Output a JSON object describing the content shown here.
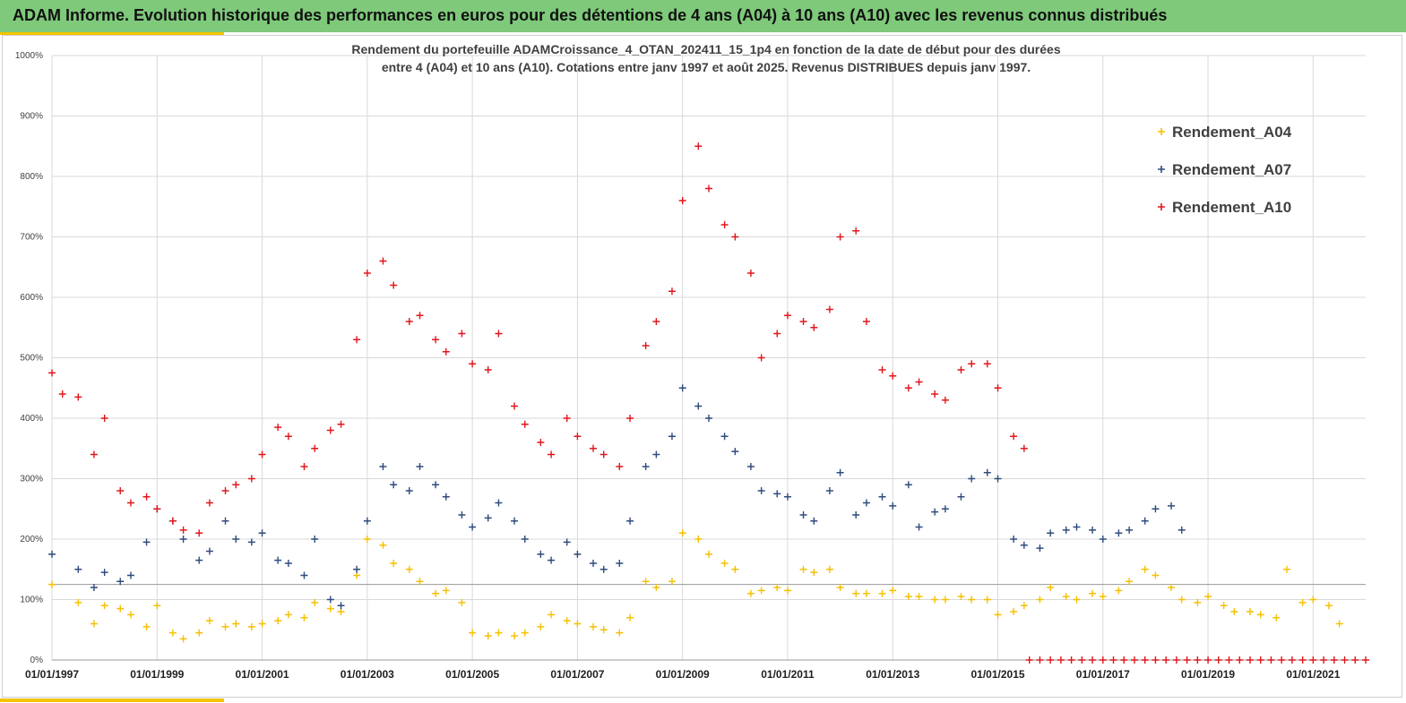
{
  "header": {
    "title": "ADAM Informe. Evolution historique des performances en euros pour des détentions de 4 ans (A04) à 10 ans (A10) avec les revenus connus distribués"
  },
  "colors": {
    "banner": "#7ec97a",
    "accent": "#f5c400",
    "a04": "#f5c000",
    "a07": "#2f4b7c",
    "a10": "#e0161c"
  },
  "chart_data": {
    "type": "scatter",
    "subtitle_line1": "Rendement du portefeuille ADAMCroissance_4_OTAN_202411_15_1p4  en fonction de la date de début pour des durées",
    "subtitle_line2": "entre 4 (A04) et 10 ans (A10). Cotations entre janv 1997 et août 2025. Revenus DISTRIBUES depuis janv 1997.",
    "xlim": [
      1997.0,
      2022.0
    ],
    "ylim": [
      0,
      1000
    ],
    "y_ticks": [
      "0%",
      "100%",
      "200%",
      "300%",
      "400%",
      "500%",
      "600%",
      "700%",
      "800%",
      "900%",
      "1000%"
    ],
    "x_ticks": [
      "01/01/1997",
      "01/01/1999",
      "01/01/2001",
      "01/01/2003",
      "01/01/2005",
      "01/01/2007",
      "01/01/2009",
      "01/01/2011",
      "01/01/2013",
      "01/01/2015",
      "01/01/2017",
      "01/01/2019",
      "01/01/2021"
    ],
    "reference_line_y": 125,
    "legend_position": "right",
    "marker": "+",
    "series": [
      {
        "name": "Rendement_A04",
        "color": "#f5c000",
        "x": [
          1997.0,
          1997.5,
          1997.8,
          1998.0,
          1998.3,
          1998.5,
          1998.8,
          1999.0,
          1999.3,
          1999.5,
          1999.8,
          2000.0,
          2000.3,
          2000.5,
          2000.8,
          2001.0,
          2001.3,
          2001.5,
          2001.8,
          2002.0,
          2002.3,
          2002.5,
          2002.8,
          2003.0,
          2003.3,
          2003.5,
          2003.8,
          2004.0,
          2004.3,
          2004.5,
          2004.8,
          2005.0,
          2005.3,
          2005.5,
          2005.8,
          2006.0,
          2006.3,
          2006.5,
          2006.8,
          2007.0,
          2007.3,
          2007.5,
          2007.8,
          2008.0,
          2008.3,
          2008.5,
          2008.8,
          2009.0,
          2009.3,
          2009.5,
          2009.8,
          2010.0,
          2010.3,
          2010.5,
          2010.8,
          2011.0,
          2011.3,
          2011.5,
          2011.8,
          2012.0,
          2012.3,
          2012.5,
          2012.8,
          2013.0,
          2013.3,
          2013.5,
          2013.8,
          2014.0,
          2014.3,
          2014.5,
          2014.8,
          2015.0,
          2015.3,
          2015.5,
          2015.8,
          2016.0,
          2016.3,
          2016.5,
          2016.8,
          2017.0,
          2017.3,
          2017.5,
          2017.8,
          2018.0,
          2018.3,
          2018.5,
          2018.8,
          2019.0,
          2019.3,
          2019.5,
          2019.8,
          2020.0,
          2020.3,
          2020.5,
          2020.8,
          2021.0,
          2021.3,
          2021.5
        ],
        "y": [
          125,
          95,
          60,
          90,
          85,
          75,
          55,
          90,
          45,
          35,
          45,
          65,
          55,
          60,
          55,
          60,
          65,
          75,
          70,
          95,
          85,
          80,
          140,
          200,
          190,
          160,
          150,
          130,
          110,
          115,
          95,
          45,
          40,
          45,
          40,
          45,
          55,
          75,
          65,
          60,
          55,
          50,
          45,
          70,
          130,
          120,
          130,
          210,
          200,
          175,
          160,
          150,
          110,
          115,
          120,
          115,
          150,
          145,
          150,
          120,
          110,
          110,
          110,
          115,
          105,
          105,
          100,
          100,
          105,
          100,
          100,
          75,
          80,
          90,
          100,
          120,
          105,
          100,
          110,
          105,
          115,
          130,
          150,
          140,
          120,
          100,
          95,
          105,
          90,
          80,
          80,
          75,
          70,
          150,
          95,
          100,
          90,
          60
        ]
      },
      {
        "name": "Rendement_A07",
        "color": "#2f4b7c",
        "x": [
          1997.0,
          1997.5,
          1997.8,
          1998.0,
          1998.3,
          1998.5,
          1998.8,
          1999.0,
          1999.3,
          1999.5,
          1999.8,
          2000.0,
          2000.3,
          2000.5,
          2000.8,
          2001.0,
          2001.3,
          2001.5,
          2001.8,
          2002.0,
          2002.3,
          2002.5,
          2002.8,
          2003.0,
          2003.3,
          2003.5,
          2003.8,
          2004.0,
          2004.3,
          2004.5,
          2004.8,
          2005.0,
          2005.3,
          2005.5,
          2005.8,
          2006.0,
          2006.3,
          2006.5,
          2006.8,
          2007.0,
          2007.3,
          2007.5,
          2007.8,
          2008.0,
          2008.3,
          2008.5,
          2008.8,
          2009.0,
          2009.3,
          2009.5,
          2009.8,
          2010.0,
          2010.3,
          2010.5,
          2010.8,
          2011.0,
          2011.3,
          2011.5,
          2011.8,
          2012.0,
          2012.3,
          2012.5,
          2012.8,
          2013.0,
          2013.3,
          2013.5,
          2013.8,
          2014.0,
          2014.3,
          2014.5,
          2014.8,
          2015.0,
          2015.3,
          2015.5,
          2015.8,
          2016.0,
          2016.3,
          2016.5,
          2016.8,
          2017.0,
          2017.3,
          2017.5,
          2017.8,
          2018.0,
          2018.3,
          2018.5
        ],
        "y": [
          175,
          150,
          120,
          145,
          130,
          140,
          195,
          250,
          230,
          200,
          165,
          180,
          230,
          200,
          195,
          210,
          165,
          160,
          140,
          200,
          100,
          90,
          150,
          230,
          320,
          290,
          280,
          320,
          290,
          270,
          240,
          220,
          235,
          260,
          230,
          200,
          175,
          165,
          195,
          175,
          160,
          150,
          160,
          230,
          320,
          340,
          370,
          450,
          420,
          400,
          370,
          345,
          320,
          280,
          275,
          270,
          240,
          230,
          280,
          310,
          240,
          260,
          270,
          255,
          290,
          220,
          245,
          250,
          270,
          300,
          310,
          300,
          200,
          190,
          185,
          210,
          215,
          220,
          215,
          200,
          210,
          215,
          230,
          250,
          255,
          215
        ]
      },
      {
        "name": "Rendement_A10",
        "color": "#e0161c",
        "x": [
          1997.0,
          1997.2,
          1997.5,
          1997.8,
          1998.0,
          1998.3,
          1998.5,
          1998.8,
          1999.0,
          1999.3,
          1999.5,
          1999.8,
          2000.0,
          2000.3,
          2000.5,
          2000.8,
          2001.0,
          2001.3,
          2001.5,
          2001.8,
          2002.0,
          2002.3,
          2002.5,
          2002.8,
          2003.0,
          2003.3,
          2003.5,
          2003.8,
          2004.0,
          2004.3,
          2004.5,
          2004.8,
          2005.0,
          2005.3,
          2005.5,
          2005.8,
          2006.0,
          2006.3,
          2006.5,
          2006.8,
          2007.0,
          2007.3,
          2007.5,
          2007.8,
          2008.0,
          2008.3,
          2008.5,
          2008.8,
          2009.0,
          2009.3,
          2009.5,
          2009.8,
          2010.0,
          2010.3,
          2010.5,
          2010.8,
          2011.0,
          2011.3,
          2011.5,
          2011.8,
          2012.0,
          2012.3,
          2012.5,
          2012.8,
          2013.0,
          2013.3,
          2013.5,
          2013.8,
          2014.0,
          2014.3,
          2014.5,
          2014.8,
          2015.0,
          2015.3,
          2015.5
        ],
        "y": [
          475,
          440,
          435,
          340,
          400,
          280,
          260,
          270,
          250,
          230,
          215,
          210,
          260,
          280,
          290,
          300,
          340,
          385,
          370,
          320,
          350,
          380,
          390,
          530,
          640,
          660,
          620,
          560,
          570,
          530,
          510,
          540,
          490,
          480,
          540,
          420,
          390,
          360,
          340,
          400,
          370,
          350,
          340,
          320,
          400,
          520,
          560,
          610,
          760,
          850,
          780,
          720,
          700,
          640,
          500,
          540,
          570,
          560,
          550,
          580,
          700,
          710,
          560,
          480,
          470,
          450,
          460,
          440,
          430,
          480,
          490,
          490,
          450,
          370,
          350
        ]
      },
      {
        "name": "",
        "color": "#e0161c",
        "x": [
          2015.6,
          2015.8,
          2016.0,
          2016.2,
          2016.4,
          2016.6,
          2016.8,
          2017.0,
          2017.2,
          2017.4,
          2017.6,
          2017.8,
          2018.0,
          2018.2,
          2018.4,
          2018.6,
          2018.8,
          2019.0,
          2019.2,
          2019.4,
          2019.6,
          2019.8,
          2020.0,
          2020.2,
          2020.4,
          2020.6,
          2020.8,
          2021.0,
          2021.2,
          2021.4,
          2021.6,
          2021.8,
          2022.0
        ],
        "y": [
          0,
          0,
          0,
          0,
          0,
          0,
          0,
          0,
          0,
          0,
          0,
          0,
          0,
          0,
          0,
          0,
          0,
          0,
          0,
          0,
          0,
          0,
          0,
          0,
          0,
          0,
          0,
          0,
          0,
          0,
          0,
          0,
          0
        ]
      }
    ]
  }
}
